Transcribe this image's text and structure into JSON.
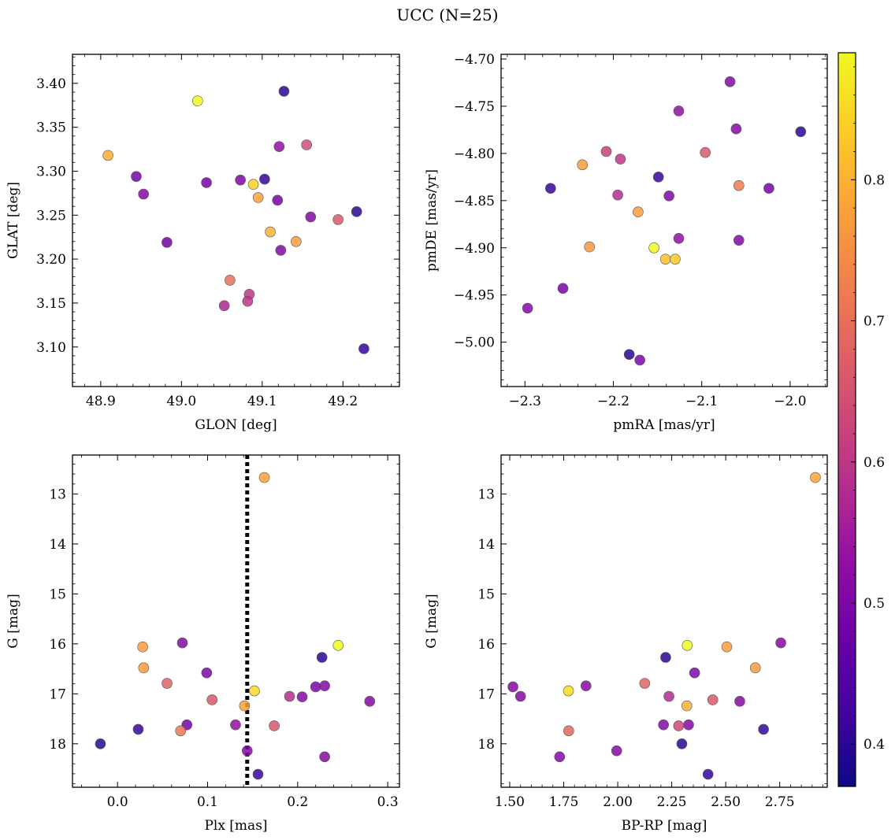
{
  "figure": {
    "title": "UCC (N=25)"
  },
  "colorbar": {
    "colormap": "plasma",
    "range": [
      0.37,
      0.89
    ],
    "ticks": [
      0.4,
      0.5,
      0.6,
      0.7,
      0.8
    ],
    "tick_labels": [
      "0.4",
      "0.5",
      "0.6",
      "0.7",
      "0.8"
    ]
  },
  "chart_data": [
    {
      "type": "scatter",
      "name": "position",
      "xlabel": "GLON [deg]",
      "ylabel": "GLAT [deg]",
      "xlim": [
        48.865,
        49.27
      ],
      "ylim": [
        3.055,
        3.433
      ],
      "xticks": [
        48.9,
        49.0,
        49.1,
        49.2
      ],
      "xtick_labels": [
        "48.9",
        "49.0",
        "49.1",
        "49.2"
      ],
      "yticks": [
        3.1,
        3.15,
        3.2,
        3.25,
        3.3,
        3.35,
        3.4
      ],
      "ytick_labels": [
        "3.10",
        "3.15",
        "3.20",
        "3.25",
        "3.30",
        "3.35",
        "3.40"
      ],
      "invert_y": false,
      "points": [
        {
          "x": 49.02,
          "y": 3.38,
          "c": 0.89
        },
        {
          "x": 49.127,
          "y": 3.391,
          "c": 0.4
        },
        {
          "x": 48.909,
          "y": 3.318,
          "c": 0.79
        },
        {
          "x": 49.121,
          "y": 3.328,
          "c": 0.53
        },
        {
          "x": 49.155,
          "y": 3.33,
          "c": 0.64
        },
        {
          "x": 48.944,
          "y": 3.294,
          "c": 0.49
        },
        {
          "x": 49.031,
          "y": 3.287,
          "c": 0.49
        },
        {
          "x": 49.073,
          "y": 3.29,
          "c": 0.5
        },
        {
          "x": 49.089,
          "y": 3.285,
          "c": 0.84
        },
        {
          "x": 49.103,
          "y": 3.291,
          "c": 0.41
        },
        {
          "x": 48.953,
          "y": 3.274,
          "c": 0.51
        },
        {
          "x": 49.095,
          "y": 3.27,
          "c": 0.78
        },
        {
          "x": 49.119,
          "y": 3.267,
          "c": 0.49
        },
        {
          "x": 49.16,
          "y": 3.248,
          "c": 0.51
        },
        {
          "x": 49.194,
          "y": 3.245,
          "c": 0.66
        },
        {
          "x": 49.217,
          "y": 3.254,
          "c": 0.4
        },
        {
          "x": 48.982,
          "y": 3.219,
          "c": 0.48
        },
        {
          "x": 49.11,
          "y": 3.231,
          "c": 0.8
        },
        {
          "x": 49.142,
          "y": 3.22,
          "c": 0.77
        },
        {
          "x": 49.123,
          "y": 3.21,
          "c": 0.51
        },
        {
          "x": 49.06,
          "y": 3.176,
          "c": 0.7
        },
        {
          "x": 49.084,
          "y": 3.16,
          "c": 0.6
        },
        {
          "x": 49.082,
          "y": 3.152,
          "c": 0.6
        },
        {
          "x": 49.053,
          "y": 3.147,
          "c": 0.57
        },
        {
          "x": 49.226,
          "y": 3.098,
          "c": 0.41
        }
      ]
    },
    {
      "type": "scatter",
      "name": "proper-motion",
      "xlabel": "pmRA [mas/yr]",
      "ylabel": "pmDE [mas/yr]",
      "xlim": [
        -2.327,
        -1.958
      ],
      "ylim": [
        -5.047,
        -4.695
      ],
      "xticks": [
        -2.3,
        -2.2,
        -2.1,
        -2.0
      ],
      "xtick_labels": [
        "−2.3",
        "−2.2",
        "−2.1",
        "−2.0"
      ],
      "yticks": [
        -5.0,
        -4.95,
        -4.9,
        -4.85,
        -4.8,
        -4.75,
        -4.7
      ],
      "ytick_labels": [
        "−5.00",
        "−4.95",
        "−4.90",
        "−4.85",
        "−4.80",
        "−4.75",
        "−4.70"
      ],
      "invert_y": false,
      "points": [
        {
          "x": -2.068,
          "y": -4.724,
          "c": 0.51
        },
        {
          "x": -2.126,
          "y": -4.755,
          "c": 0.53
        },
        {
          "x": -2.061,
          "y": -4.774,
          "c": 0.51
        },
        {
          "x": -1.988,
          "y": -4.777,
          "c": 0.4
        },
        {
          "x": -2.208,
          "y": -4.798,
          "c": 0.62
        },
        {
          "x": -2.096,
          "y": -4.799,
          "c": 0.66
        },
        {
          "x": -2.192,
          "y": -4.806,
          "c": 0.6
        },
        {
          "x": -2.235,
          "y": -4.812,
          "c": 0.77
        },
        {
          "x": -2.149,
          "y": -4.825,
          "c": 0.41
        },
        {
          "x": -2.271,
          "y": -4.837,
          "c": 0.41
        },
        {
          "x": -2.058,
          "y": -4.834,
          "c": 0.72
        },
        {
          "x": -2.024,
          "y": -4.837,
          "c": 0.49
        },
        {
          "x": -2.195,
          "y": -4.844,
          "c": 0.58
        },
        {
          "x": -2.137,
          "y": -4.845,
          "c": 0.5
        },
        {
          "x": -2.172,
          "y": -4.862,
          "c": 0.77
        },
        {
          "x": -2.126,
          "y": -4.89,
          "c": 0.53
        },
        {
          "x": -2.058,
          "y": -4.892,
          "c": 0.51
        },
        {
          "x": -2.227,
          "y": -4.899,
          "c": 0.76
        },
        {
          "x": -2.154,
          "y": -4.9,
          "c": 0.89
        },
        {
          "x": -2.141,
          "y": -4.912,
          "c": 0.82
        },
        {
          "x": -2.13,
          "y": -4.912,
          "c": 0.83
        },
        {
          "x": -2.257,
          "y": -4.943,
          "c": 0.49
        },
        {
          "x": -2.297,
          "y": -4.964,
          "c": 0.51
        },
        {
          "x": -2.182,
          "y": -5.013,
          "c": 0.4
        },
        {
          "x": -2.17,
          "y": -5.019,
          "c": 0.5
        }
      ]
    },
    {
      "type": "scatter",
      "name": "parallax-magnitude",
      "xlabel": "Plx [mas]",
      "ylabel": "G [mag]",
      "xlim": [
        -0.05,
        0.313
      ],
      "ylim": [
        18.87,
        12.22
      ],
      "xticks": [
        0.0,
        0.1,
        0.2,
        0.3
      ],
      "xtick_labels": [
        "0.0",
        "0.1",
        "0.2",
        "0.3"
      ],
      "yticks": [
        13,
        14,
        15,
        16,
        17,
        18
      ],
      "ytick_labels": [
        "13",
        "14",
        "15",
        "16",
        "17",
        "18"
      ],
      "invert_y": true,
      "vline": 0.144,
      "points": [
        {
          "x": 0.163,
          "y": 12.67,
          "c": 0.78
        },
        {
          "x": 0.072,
          "y": 15.98,
          "c": 0.51
        },
        {
          "x": 0.245,
          "y": 16.03,
          "c": 0.89
        },
        {
          "x": 0.028,
          "y": 16.06,
          "c": 0.77
        },
        {
          "x": 0.227,
          "y": 16.27,
          "c": 0.4
        },
        {
          "x": 0.029,
          "y": 16.48,
          "c": 0.77
        },
        {
          "x": 0.099,
          "y": 16.58,
          "c": 0.5
        },
        {
          "x": 0.055,
          "y": 16.79,
          "c": 0.68
        },
        {
          "x": 0.23,
          "y": 16.84,
          "c": 0.51
        },
        {
          "x": 0.22,
          "y": 16.86,
          "c": 0.5
        },
        {
          "x": 0.152,
          "y": 16.94,
          "c": 0.85
        },
        {
          "x": 0.191,
          "y": 17.05,
          "c": 0.58
        },
        {
          "x": 0.205,
          "y": 17.06,
          "c": 0.51
        },
        {
          "x": 0.105,
          "y": 17.12,
          "c": 0.66
        },
        {
          "x": 0.28,
          "y": 17.15,
          "c": 0.51
        },
        {
          "x": 0.141,
          "y": 17.24,
          "c": 0.78
        },
        {
          "x": 0.077,
          "y": 17.62,
          "c": 0.49
        },
        {
          "x": 0.131,
          "y": 17.62,
          "c": 0.53
        },
        {
          "x": 0.174,
          "y": 17.64,
          "c": 0.66
        },
        {
          "x": 0.07,
          "y": 17.74,
          "c": 0.71
        },
        {
          "x": 0.023,
          "y": 17.71,
          "c": 0.41
        },
        {
          "x": -0.019,
          "y": 18.0,
          "c": 0.4
        },
        {
          "x": 0.144,
          "y": 18.14,
          "c": 0.51
        },
        {
          "x": 0.23,
          "y": 18.26,
          "c": 0.51
        },
        {
          "x": 0.156,
          "y": 18.61,
          "c": 0.41
        }
      ]
    },
    {
      "type": "scatter",
      "name": "color-magnitude",
      "xlabel": "BP-RP [mag]",
      "ylabel": "G [mag]",
      "xlim": [
        1.46,
        2.97
      ],
      "ylim": [
        18.87,
        12.22
      ],
      "xticks": [
        1.5,
        1.75,
        2.0,
        2.25,
        2.5,
        2.75
      ],
      "xtick_labels": [
        "1.50",
        "1.75",
        "2.00",
        "2.25",
        "2.50",
        "2.75"
      ],
      "yticks": [
        13,
        14,
        15,
        16,
        17,
        18
      ],
      "ytick_labels": [
        "13",
        "14",
        "15",
        "16",
        "17",
        "18"
      ],
      "invert_y": true,
      "points": [
        {
          "x": 2.915,
          "y": 12.67,
          "c": 0.78
        },
        {
          "x": 2.755,
          "y": 15.98,
          "c": 0.51
        },
        {
          "x": 2.322,
          "y": 16.03,
          "c": 0.89
        },
        {
          "x": 2.505,
          "y": 16.06,
          "c": 0.77
        },
        {
          "x": 2.222,
          "y": 16.27,
          "c": 0.4
        },
        {
          "x": 2.637,
          "y": 16.48,
          "c": 0.77
        },
        {
          "x": 2.356,
          "y": 16.58,
          "c": 0.5
        },
        {
          "x": 2.125,
          "y": 16.79,
          "c": 0.68
        },
        {
          "x": 1.853,
          "y": 16.84,
          "c": 0.51
        },
        {
          "x": 1.515,
          "y": 16.86,
          "c": 0.51
        },
        {
          "x": 1.772,
          "y": 16.94,
          "c": 0.85
        },
        {
          "x": 1.55,
          "y": 17.05,
          "c": 0.51
        },
        {
          "x": 2.237,
          "y": 17.05,
          "c": 0.58
        },
        {
          "x": 2.44,
          "y": 17.12,
          "c": 0.66
        },
        {
          "x": 2.565,
          "y": 17.15,
          "c": 0.51
        },
        {
          "x": 2.32,
          "y": 17.24,
          "c": 0.8
        },
        {
          "x": 2.212,
          "y": 17.62,
          "c": 0.51
        },
        {
          "x": 2.328,
          "y": 17.62,
          "c": 0.51
        },
        {
          "x": 2.282,
          "y": 17.64,
          "c": 0.63
        },
        {
          "x": 1.773,
          "y": 17.74,
          "c": 0.69
        },
        {
          "x": 2.675,
          "y": 17.71,
          "c": 0.41
        },
        {
          "x": 2.297,
          "y": 18.0,
          "c": 0.4
        },
        {
          "x": 1.995,
          "y": 18.14,
          "c": 0.51
        },
        {
          "x": 1.731,
          "y": 18.26,
          "c": 0.51
        },
        {
          "x": 2.418,
          "y": 18.61,
          "c": 0.41
        }
      ]
    }
  ]
}
